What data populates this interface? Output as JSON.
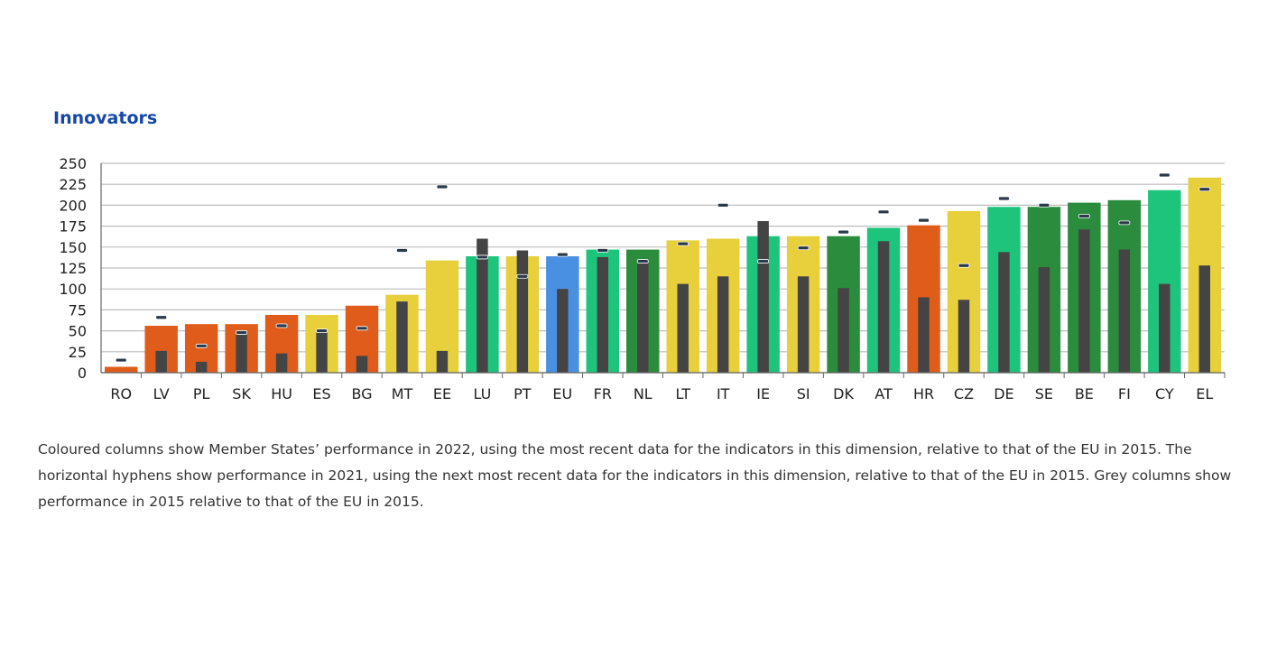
{
  "chart_data": {
    "type": "bar",
    "title": "Innovators",
    "ylim": [
      0,
      250
    ],
    "yticks": [
      0,
      25,
      50,
      75,
      100,
      125,
      150,
      175,
      200,
      225,
      250
    ],
    "grid": true,
    "categories": [
      "RO",
      "LV",
      "PL",
      "SK",
      "HU",
      "ES",
      "BG",
      "MT",
      "EE",
      "LU",
      "PT",
      "EU",
      "FR",
      "NL",
      "LT",
      "IT",
      "IE",
      "SI",
      "DK",
      "AT",
      "HR",
      "CZ",
      "DE",
      "SE",
      "BE",
      "FI",
      "CY",
      "EL"
    ],
    "series": [
      {
        "values": [
          7,
          56,
          58,
          58,
          69,
          69,
          80,
          93,
          134,
          139,
          139,
          139,
          147,
          147,
          158,
          160,
          163,
          163,
          163,
          173,
          176,
          193,
          198,
          198,
          203,
          206,
          218,
          233
        ],
        "colors": [
          "#e05c1a",
          "#e05c1a",
          "#e05c1a",
          "#e05c1a",
          "#e05c1a",
          "#e8cf3c",
          "#e05c1a",
          "#e8cf3c",
          "#e8cf3c",
          "#1ec47c",
          "#e8cf3c",
          "#4a90e2",
          "#1ec47c",
          "#2a8c3c",
          "#e8cf3c",
          "#e8cf3c",
          "#1ec47c",
          "#e8cf3c",
          "#2a8c3c",
          "#1ec47c",
          "#e05c1a",
          "#e8cf3c",
          "#1ec47c",
          "#2a8c3c",
          "#2a8c3c",
          "#2a8c3c",
          "#1ec47c",
          "#e8cf3c"
        ]
      },
      {
        "color": "#444444",
        "values": [
          0,
          26,
          13,
          46,
          23,
          51,
          20,
          85,
          26,
          160,
          146,
          100,
          138,
          135,
          106,
          115,
          181,
          115,
          101,
          157,
          90,
          87,
          144,
          126,
          171,
          147,
          106,
          128
        ]
      },
      {
        "color": "#2a3a4a",
        "values": [
          15,
          66,
          32,
          48,
          56,
          50,
          53,
          146,
          222,
          138,
          115,
          141,
          146,
          133,
          154,
          200,
          133,
          149,
          168,
          192,
          182,
          128,
          208,
          200,
          187,
          179,
          236,
          219
        ]
      }
    ]
  },
  "caption": "Coloured columns show Member States’ performance in 2022, using the most recent data for the indicators in this dimension, relative to that of the EU in 2015. The horizontal hyphens show performance in 2021, using the next most recent data for the indicators in this dimension, relative to that of the EU in 2015. Grey columns show performance in 2015 relative to that of the EU in 2015."
}
